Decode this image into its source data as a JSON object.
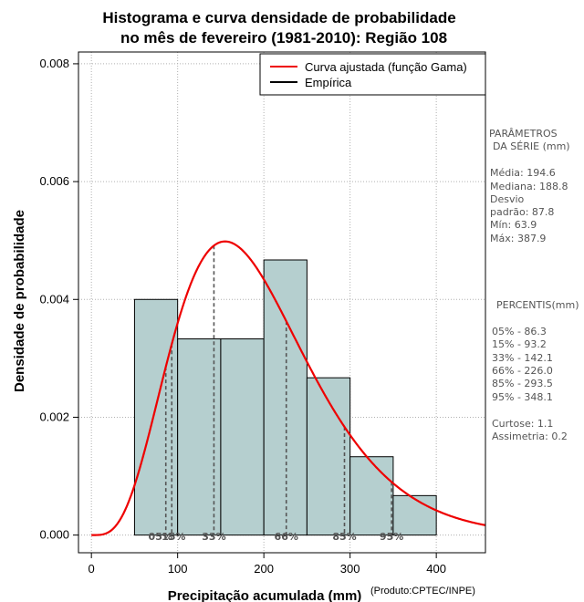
{
  "chart_data": {
    "type": "bar",
    "title_lines": [
      "Histograma e curva densidade de probabilidade",
      "no mês de fevereiro (1981-2010): Região 108"
    ],
    "xlabel": "Precipitação acumulada (mm)",
    "ylabel": "Densidade de probabilidade",
    "credit": "(Produto:CPTEC/INPE)",
    "xlim": [
      -15,
      457
    ],
    "ylim": [
      -0.0003,
      0.0082
    ],
    "x_ticks": [
      0,
      100,
      200,
      300,
      400
    ],
    "y_ticks": [
      0.0,
      0.002,
      0.004,
      0.006,
      0.008
    ],
    "y_tick_labels": [
      "0.000",
      "0.002",
      "0.004",
      "0.006",
      "0.008"
    ],
    "grid": true,
    "histogram": {
      "bins": [
        {
          "from": 50,
          "to": 100,
          "density": 0.004
        },
        {
          "from": 100,
          "to": 150,
          "density": 0.00333
        },
        {
          "from": 150,
          "to": 200,
          "density": 0.00333
        },
        {
          "from": 200,
          "to": 250,
          "density": 0.00467
        },
        {
          "from": 250,
          "to": 300,
          "density": 0.00267
        },
        {
          "from": 300,
          "to": 350,
          "density": 0.00133
        },
        {
          "from": 350,
          "to": 400,
          "density": 0.00067
        }
      ],
      "color": "#b5cfcf"
    },
    "gamma_curve": {
      "name": "Curva ajustada (função Gama)",
      "mean": 194.6,
      "sd": 87.8,
      "color": "#ee0000"
    },
    "legend": [
      {
        "label": "Curva ajustada (função Gama)",
        "color": "#ee0000"
      },
      {
        "label": "Empírica",
        "color": "#000000"
      }
    ],
    "percentiles": [
      {
        "label": "05%",
        "value": 86.3
      },
      {
        "label": "15%",
        "value": 93.2
      },
      {
        "label": "33%",
        "value": 142.1
      },
      {
        "label": "66%",
        "value": 226.0
      },
      {
        "label": "85%",
        "value": 293.5
      },
      {
        "label": "95%",
        "value": 348.1
      }
    ]
  },
  "sidebar": {
    "params_title_1": "PARÂMETROS",
    "params_title_2": "DA SÉRIE (mm)",
    "media": "Média:  194.6",
    "mediana": "Mediana:  188.8",
    "desvio_1": "Desvio",
    "desvio_2": "padrão:  87.8",
    "min": "Mín:  63.9",
    "max": "Máx:  387.9",
    "percentis_title": "PERCENTIS(mm)",
    "p05": "05% -  86.3",
    "p15": "15% -  93.2",
    "p33": "33% -  142.1",
    "p66": "66% -  226.0",
    "p85": "85% -  293.5",
    "p95": "95% -  348.1",
    "curtose": "Curtose:  1.1",
    "assimetria": "Assimetria:  0.2"
  }
}
